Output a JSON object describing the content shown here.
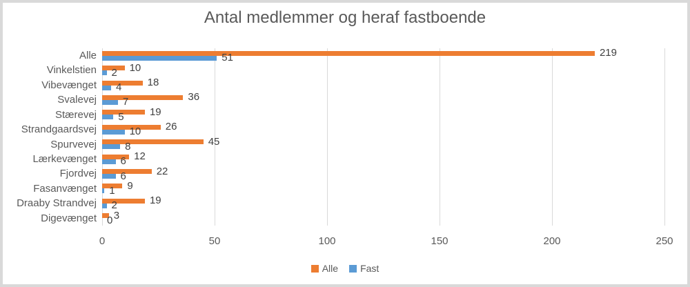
{
  "window": {
    "background_color": "#ffffff",
    "border_color": "#d9d9d9"
  },
  "chart_data": {
    "type": "bar",
    "orientation": "horizontal",
    "title": "Antal medlemmer og heraf fastboende",
    "categories": [
      "Alle",
      "Vinkelstien",
      "Vibevænget",
      "Svalevej",
      "Stærevej",
      "Strandgaardsvej",
      "Spurvevej",
      "Lærkevænget",
      "Fjordvej",
      "Fasanvænget",
      "Draaby Strandvej",
      "Digevænget"
    ],
    "series": [
      {
        "name": "Alle",
        "color": "#ED7D31",
        "values": [
          219,
          10,
          18,
          36,
          19,
          26,
          45,
          12,
          22,
          9,
          19,
          3
        ]
      },
      {
        "name": "Fast",
        "color": "#5B9BD5",
        "values": [
          51,
          2,
          4,
          7,
          5,
          10,
          8,
          6,
          6,
          1,
          2,
          0
        ]
      }
    ],
    "xlabel": "",
    "ylabel": "",
    "xlim": [
      0,
      250
    ],
    "xticks": [
      0,
      50,
      100,
      150,
      200,
      250
    ],
    "grid": true,
    "data_labels": true,
    "legend_position": "bottom",
    "colors": {
      "title_text": "#595959",
      "axis_text": "#595959",
      "data_label_text": "#404040",
      "gridline": "#D9D9D9"
    }
  }
}
